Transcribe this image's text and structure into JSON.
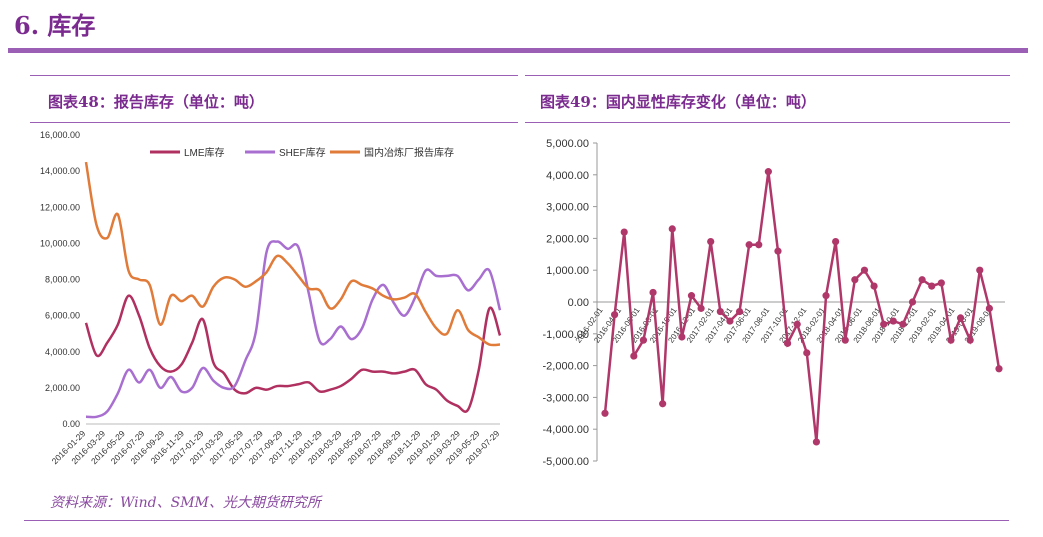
{
  "section": {
    "title": "6. 库存"
  },
  "source": "资料来源：Wind、SMM、光大期货研究所",
  "colors": {
    "accent": "#7b2a8f",
    "lme": "#b03060",
    "shfe": "#a86fd0",
    "cn": "#e07b39",
    "chg": "#b0376a"
  },
  "chart_data": [
    {
      "type": "line",
      "title": "图表48：报告库存（单位：吨）",
      "ylim": [
        0,
        16000
      ],
      "yticks": [
        "0.00",
        "2,000.00",
        "4,000.00",
        "6,000.00",
        "8,000.00",
        "10,000.00",
        "12,000.00",
        "14,000.00",
        "16,000.00"
      ],
      "xticks": [
        "2016-01-29",
        "2016-03-29",
        "2016-05-29",
        "2016-07-29",
        "2016-09-29",
        "2016-11-29",
        "2017-01-29",
        "2017-03-29",
        "2017-05-29",
        "2017-07-29",
        "2017-09-29",
        "2017-11-29",
        "2018-01-29",
        "2018-03-29",
        "2018-05-29",
        "2018-07-29",
        "2018-09-29",
        "2018-11-29",
        "2019-01-29",
        "2019-03-29",
        "2019-05-29",
        "2019-07-29"
      ],
      "legend": "top",
      "series": [
        {
          "name": "LME库存",
          "x": [
            0,
            1,
            2,
            3,
            4,
            5,
            6,
            7,
            8,
            9,
            10,
            11,
            12,
            13,
            14,
            15,
            16,
            17,
            18,
            19,
            20,
            21,
            22,
            23,
            24,
            25,
            26,
            27,
            28,
            29,
            30,
            31,
            32,
            33,
            34,
            35,
            36,
            37,
            38,
            39,
            40,
            41,
            42,
            43,
            44
          ],
          "values": [
            5600,
            3800,
            4500,
            5500,
            7100,
            6000,
            4200,
            3200,
            2900,
            3300,
            4500,
            5800,
            3400,
            2800,
            1900,
            1700,
            2000,
            1900,
            2100,
            2100,
            2200,
            2300,
            1800,
            1900,
            2100,
            2500,
            3000,
            2900,
            2900,
            2800,
            2900,
            3000,
            2200,
            1900,
            1300,
            1000,
            800,
            3000,
            6400,
            4900,
            null,
            null,
            null,
            null,
            null
          ]
        },
        {
          "name": "SHEF库存",
          "x": [
            0,
            1,
            2,
            3,
            4,
            5,
            6,
            7,
            8,
            9,
            10,
            11,
            12,
            13,
            14,
            15,
            16,
            17,
            18,
            19,
            20,
            21,
            22,
            23,
            24,
            25,
            26,
            27,
            28,
            29,
            30,
            31,
            32,
            33,
            34,
            35,
            36,
            37,
            38,
            39
          ],
          "values": [
            400,
            400,
            700,
            1700,
            3000,
            2300,
            3000,
            2000,
            2600,
            1800,
            2000,
            3100,
            2400,
            2000,
            2100,
            3500,
            5100,
            9500,
            10100,
            9700,
            9800,
            7200,
            4600,
            4700,
            5400,
            4700,
            5300,
            6900,
            7700,
            6700,
            6000,
            7000,
            8500,
            8200,
            8200,
            8200,
            7400,
            8000,
            8500,
            6300
          ]
        },
        {
          "name": "国内冶炼厂报告库存",
          "x": [
            0,
            1,
            2,
            3,
            4,
            5,
            6,
            7,
            8,
            9,
            10,
            11,
            12,
            13,
            14,
            15,
            16,
            17,
            18,
            19,
            20,
            21,
            22,
            23,
            24,
            25,
            26,
            27,
            28,
            29,
            30,
            31,
            32,
            33,
            34,
            35,
            36,
            37,
            38,
            39
          ],
          "values": [
            14500,
            11000,
            10300,
            11600,
            8500,
            8000,
            7700,
            5500,
            7100,
            6800,
            7100,
            6500,
            7600,
            8100,
            8000,
            7600,
            7900,
            8400,
            9300,
            8900,
            8200,
            7500,
            7400,
            6400,
            6900,
            7900,
            7700,
            7500,
            7100,
            6900,
            7000,
            7200,
            6200,
            5300,
            5000,
            6300,
            5200,
            4800,
            4400,
            4400
          ]
        }
      ]
    },
    {
      "type": "line",
      "title": "图表49：国内显性库存变化（单位：吨）",
      "ylim": [
        -5000,
        5000
      ],
      "yticks": [
        "5,000.00",
        "4,000.00",
        "3,000.00",
        "2,000.00",
        "1,000.00",
        "0.00",
        "-1,000.00",
        "-2,000.00",
        "-3,000.00",
        "-4,000.00",
        "-5,000.00"
      ],
      "xticks": [
        "2016-02-01",
        "2016-04-01",
        "2016-06-01",
        "2016-08-01",
        "2016-10-01",
        "2016-12-01",
        "2017-02-01",
        "2017-04-01",
        "2017-06-01",
        "2017-08-01",
        "2017-10-01",
        "2017-12-01",
        "2018-02-01",
        "2018-04-01",
        "2018-06-01",
        "2018-08-01",
        "2018-10-01",
        "2018-12-01",
        "2019-02-01",
        "2019-04-01",
        "2019-06-01",
        "2019-08-01"
      ],
      "series": [
        {
          "name": "",
          "values": [
            -3500,
            -400,
            2200,
            -1700,
            -1200,
            300,
            -3200,
            2300,
            -1100,
            200,
            -200,
            1900,
            -300,
            -600,
            -300,
            1800,
            1800,
            4100,
            1600,
            -1300,
            -700,
            -1600,
            -4400,
            200,
            1900,
            -1200,
            700,
            1000,
            500,
            -700,
            -600,
            -700,
            0,
            700,
            500,
            600,
            -1200,
            -500,
            -1200,
            1000,
            -200,
            -2100
          ]
        }
      ]
    }
  ]
}
